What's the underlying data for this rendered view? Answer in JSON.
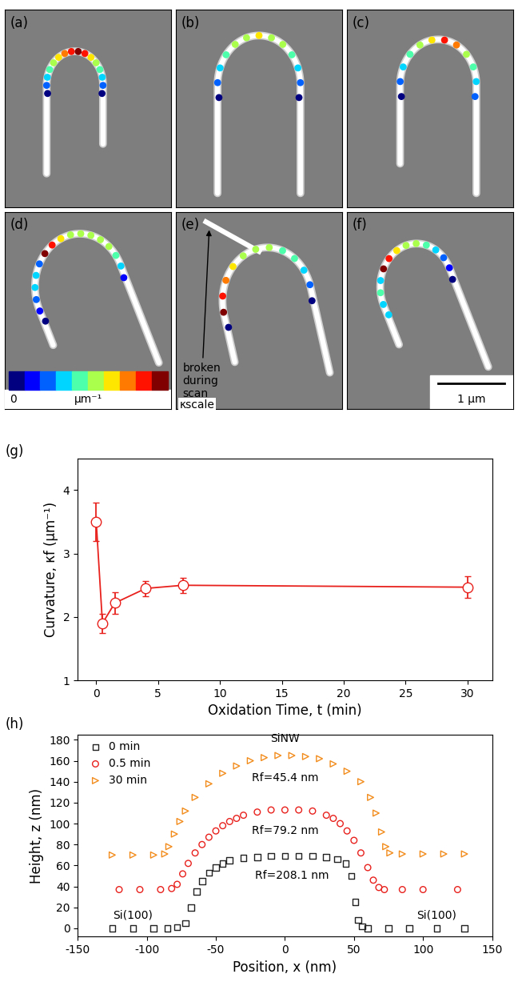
{
  "panels": [
    {
      "label": "(a)",
      "dots": [
        0,
        2,
        3,
        4,
        5,
        6,
        7,
        8,
        9,
        8,
        6,
        5,
        4,
        3,
        2,
        0
      ]
    },
    {
      "label": "(b)",
      "dots": [
        0,
        2,
        3,
        4,
        5,
        5,
        6,
        5,
        5,
        4,
        3,
        2,
        0
      ]
    },
    {
      "label": "(c)",
      "dots": [
        0,
        2,
        3,
        4,
        5,
        6,
        8,
        7,
        5,
        4,
        3,
        2
      ]
    },
    {
      "label": "(d)",
      "dots": [
        0,
        1,
        2,
        3,
        3,
        2,
        9,
        8,
        6,
        5,
        5,
        5,
        5,
        5,
        4,
        3,
        1
      ]
    },
    {
      "label": "(e)",
      "dots": [
        0,
        9,
        8,
        7,
        6,
        5,
        5,
        5,
        4,
        4,
        3,
        2,
        0
      ],
      "note": {
        "lines": [
          "broken",
          "during",
          "scan"
        ]
      }
    },
    {
      "label": "(f)",
      "dots": [
        3,
        3,
        4,
        3,
        9,
        8,
        6,
        5,
        5,
        4,
        3,
        2,
        1,
        0
      ]
    }
  ],
  "scale": {
    "low": "0",
    "unit": "μm⁻¹",
    "high": "κscale"
  },
  "scale_bar": "1 μm",
  "chart_data": [
    {
      "type": "line",
      "label": "(g)",
      "x": [
        0,
        0.5,
        1.5,
        4,
        7,
        30
      ],
      "values": [
        3.5,
        1.9,
        2.22,
        2.45,
        2.5,
        2.47
      ],
      "errors": [
        0.3,
        0.15,
        0.17,
        0.12,
        0.12,
        0.17
      ],
      "color": "#e8211d",
      "marker": "o",
      "xlabel": "Oxidation Time, t (min)",
      "ylabel": "Curvature, κf (μm⁻¹)",
      "xlim": [
        -1.5,
        32
      ],
      "ylim": [
        1,
        4.5
      ],
      "xticks": [
        0,
        5,
        10,
        15,
        20,
        25,
        30
      ],
      "yticks": [
        1,
        2,
        3,
        4
      ]
    },
    {
      "type": "scatter",
      "label": "(h)",
      "xlabel": "Position, x (nm)",
      "ylabel": "Height, z (nm)",
      "xlim": [
        -150,
        150
      ],
      "ylim": [
        -8,
        185
      ],
      "xticks": [
        -150,
        -100,
        -50,
        0,
        50,
        100,
        150
      ],
      "yticks": [
        0,
        20,
        40,
        60,
        80,
        100,
        120,
        140,
        160,
        180
      ],
      "legend": "upper left",
      "annotations": [
        "SiNW",
        "Rf=45.4 nm",
        "Rf=79.2 nm",
        "Rf=208.1 nm",
        "Si(100)",
        "Si(100)"
      ],
      "series": [
        {
          "name": "0 min",
          "color": "#222222",
          "marker": "s",
          "x": [
            -125,
            -110,
            -95,
            -85,
            -78,
            -72,
            -68,
            -64,
            -60,
            -55,
            -50,
            -45,
            -40,
            -30,
            -20,
            -10,
            0,
            10,
            20,
            30,
            38,
            44,
            48,
            51,
            53,
            56,
            60,
            75,
            90,
            110,
            130
          ],
          "values": [
            0,
            0,
            0,
            0,
            1,
            5,
            20,
            35,
            45,
            53,
            58,
            62,
            65,
            67,
            68,
            69,
            69,
            69,
            69,
            68,
            66,
            62,
            50,
            25,
            8,
            2,
            0,
            0,
            0,
            0,
            0
          ]
        },
        {
          "name": "0.5 min",
          "color": "#e8211d",
          "marker": "o",
          "x": [
            -120,
            -105,
            -90,
            -82,
            -78,
            -74,
            -70,
            -65,
            -60,
            -55,
            -50,
            -45,
            -40,
            -35,
            -30,
            -20,
            -10,
            0,
            10,
            20,
            30,
            35,
            40,
            45,
            50,
            55,
            60,
            64,
            68,
            72,
            85,
            100,
            125
          ],
          "values": [
            37,
            37,
            37,
            38,
            42,
            52,
            62,
            72,
            80,
            87,
            93,
            98,
            102,
            105,
            108,
            111,
            113,
            113,
            113,
            112,
            108,
            105,
            100,
            93,
            84,
            72,
            58,
            46,
            39,
            37,
            37,
            37,
            37
          ]
        },
        {
          "name": "30 min",
          "color": "#f28c1c",
          "marker": ">",
          "x": [
            -125,
            -110,
            -95,
            -87,
            -84,
            -80,
            -76,
            -72,
            -65,
            -55,
            -45,
            -35,
            -25,
            -15,
            -5,
            5,
            15,
            25,
            35,
            45,
            55,
            62,
            66,
            70,
            73,
            76,
            85,
            100,
            115,
            130
          ],
          "values": [
            70,
            70,
            70,
            71,
            78,
            90,
            102,
            112,
            125,
            138,
            148,
            155,
            160,
            163,
            165,
            165,
            164,
            162,
            157,
            150,
            140,
            125,
            110,
            92,
            78,
            72,
            71,
            71,
            71,
            71
          ]
        }
      ]
    }
  ]
}
